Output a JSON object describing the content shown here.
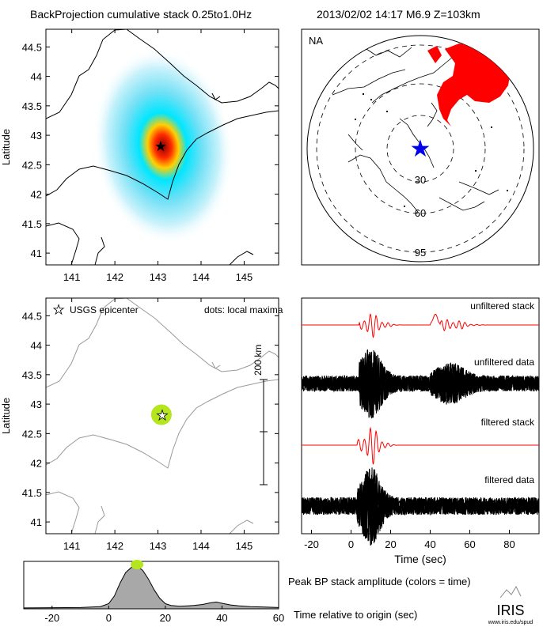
{
  "header": {
    "title": "BackProjection cumulative stack 0.25to1.0Hz",
    "event": "2013/02/02 14:17   M6.9  Z=103km"
  },
  "chart_data": [
    {
      "type": "heatmap",
      "panel": "backprojection-map",
      "ylabel": "Latitude",
      "xlim": [
        140.4,
        145.8
      ],
      "ylim": [
        40.8,
        44.8
      ],
      "xticks": [
        "141",
        "142",
        "143",
        "144",
        "145"
      ],
      "yticks": [
        "41",
        "41.5",
        "42",
        "42.5",
        "43",
        "43.5",
        "44",
        "44.5"
      ],
      "epicenter": [
        143.05,
        42.83
      ],
      "peak": [
        143.05,
        42.83
      ]
    },
    {
      "type": "scatter",
      "panel": "station-map",
      "label": "NA",
      "ring_labels": [
        "30",
        "60",
        "95"
      ],
      "center": "epicenter",
      "station_region": "North America"
    },
    {
      "type": "scatter",
      "panel": "local-maxima-map",
      "ylabel": "Latitude",
      "xlim": [
        140.4,
        145.8
      ],
      "ylim": [
        40.8,
        44.8
      ],
      "xticks": [
        "141",
        "142",
        "143",
        "144",
        "145"
      ],
      "yticks": [
        "41",
        "41.5",
        "42",
        "42.5",
        "43",
        "43.5",
        "44",
        "44.5"
      ],
      "legend_star": "USGS epicenter",
      "legend_dots": "dots: local maxima",
      "scale_label": "200 km",
      "points": [
        {
          "x": 143.08,
          "y": 42.82,
          "color": "#b5e61d"
        }
      ],
      "epicenter": [
        143.05,
        42.82
      ]
    },
    {
      "type": "line",
      "panel": "waveforms",
      "xlabel": "Time (sec)",
      "xlim": [
        -25,
        95
      ],
      "xticks": [
        "-20",
        "0",
        "20",
        "40",
        "60",
        "80"
      ],
      "series": [
        {
          "name": "unfiltered stack",
          "color": "#ff0000"
        },
        {
          "name": "unfiltered data",
          "color": "#000000"
        },
        {
          "name": "filtered stack",
          "color": "#ff0000"
        },
        {
          "name": "filtered data",
          "color": "#000000"
        }
      ]
    },
    {
      "type": "area",
      "panel": "peak-amplitude",
      "xlabel": "Time relative to origin (sec)",
      "ylabel": "",
      "title": "Peak BP stack amplitude (colors = time)",
      "xlim": [
        -30,
        60
      ],
      "xticks": [
        "-20",
        "0",
        "20",
        "40",
        "60"
      ],
      "x": [
        -30,
        -10,
        -3,
        0,
        2,
        4,
        6,
        8,
        10,
        12,
        14,
        16,
        18,
        20,
        22,
        25,
        28,
        30,
        33,
        36,
        38,
        40,
        43,
        46,
        50,
        55,
        60
      ],
      "y": [
        0.02,
        0.03,
        0.05,
        0.12,
        0.3,
        0.6,
        0.85,
        0.97,
        1.0,
        0.9,
        0.7,
        0.45,
        0.25,
        0.12,
        0.08,
        0.06,
        0.07,
        0.08,
        0.1,
        0.14,
        0.16,
        0.13,
        0.09,
        0.07,
        0.05,
        0.04,
        0.03
      ],
      "peak_marker": {
        "x": 10,
        "y": 1.0,
        "color": "#b5e61d"
      }
    }
  ],
  "logo": {
    "name": "IRIS",
    "url_text": "www.iris.edu/spud"
  }
}
